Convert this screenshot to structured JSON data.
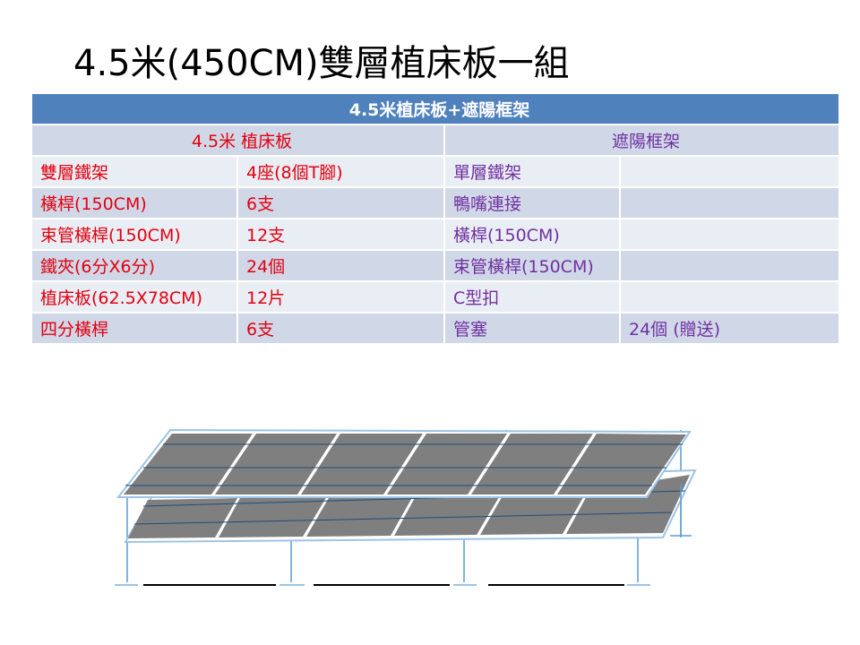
{
  "slide": {
    "title": "4.5米(450CM)雙層植床板一組"
  },
  "table": {
    "header": "4.5米植床板+遮陽框架",
    "left_heading": "4.5米 植床板",
    "right_heading": "遮陽框架",
    "rows": [
      {
        "left_item": "雙層鐵架",
        "left_qty": "4座(8個T腳)",
        "right_item": "單層鐵架",
        "right_qty": ""
      },
      {
        "left_item": "橫桿(150CM)",
        "left_qty": "6支",
        "right_item": "鴨嘴連接",
        "right_qty": ""
      },
      {
        "left_item": "束管橫桿(150CM)",
        "left_qty": "12支",
        "right_item": "橫桿(150CM)",
        "right_qty": ""
      },
      {
        "left_item": "鐵夾(6分X6分)",
        "left_qty": "24個",
        "right_item": "束管橫桿(150CM)",
        "right_qty": ""
      },
      {
        "left_item": "植床板(62.5X78CM)",
        "left_qty": "12片",
        "right_item": "C型扣",
        "right_qty": ""
      },
      {
        "left_item": "四分橫桿",
        "left_qty": "6支",
        "right_item": "管塞",
        "right_qty": "24個 (贈送)"
      }
    ]
  },
  "colors": {
    "header_bg": "#4f81bd",
    "left_text": "#e3000f",
    "right_text": "#7030a0",
    "row_light": "#e9edf4",
    "row_dark": "#d0d8e8",
    "panel_fill": "#7f7f7f",
    "frame_stroke": "#9dc3e6"
  }
}
